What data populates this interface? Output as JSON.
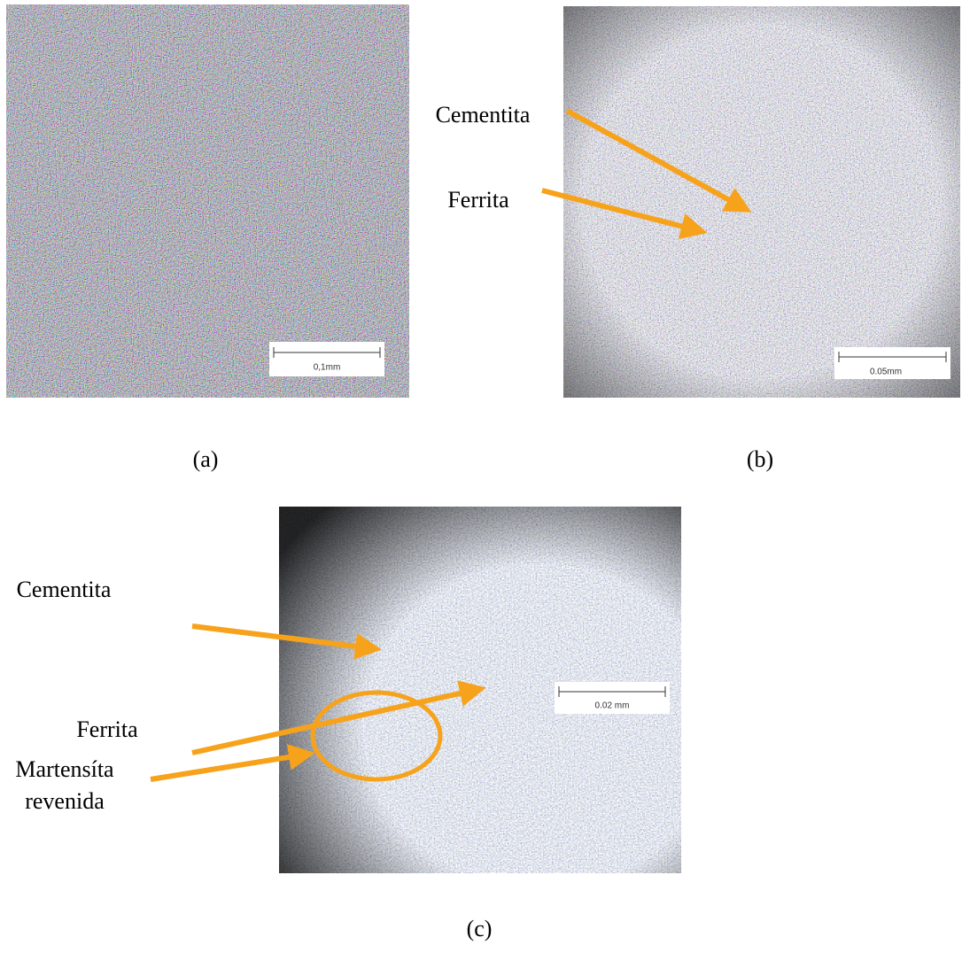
{
  "figure": {
    "panels": [
      {
        "caption": "(a)",
        "scale_bar": "0,1mm"
      },
      {
        "caption": "(b)",
        "scale_bar": "0.05mm",
        "annotations": [
          "Cementita",
          "Ferrita"
        ]
      },
      {
        "caption": "(c)",
        "scale_bar": "0.02 mm",
        "annotations": [
          "Cementita",
          "Ferrita",
          "Martensíta",
          "revenida"
        ]
      }
    ]
  }
}
